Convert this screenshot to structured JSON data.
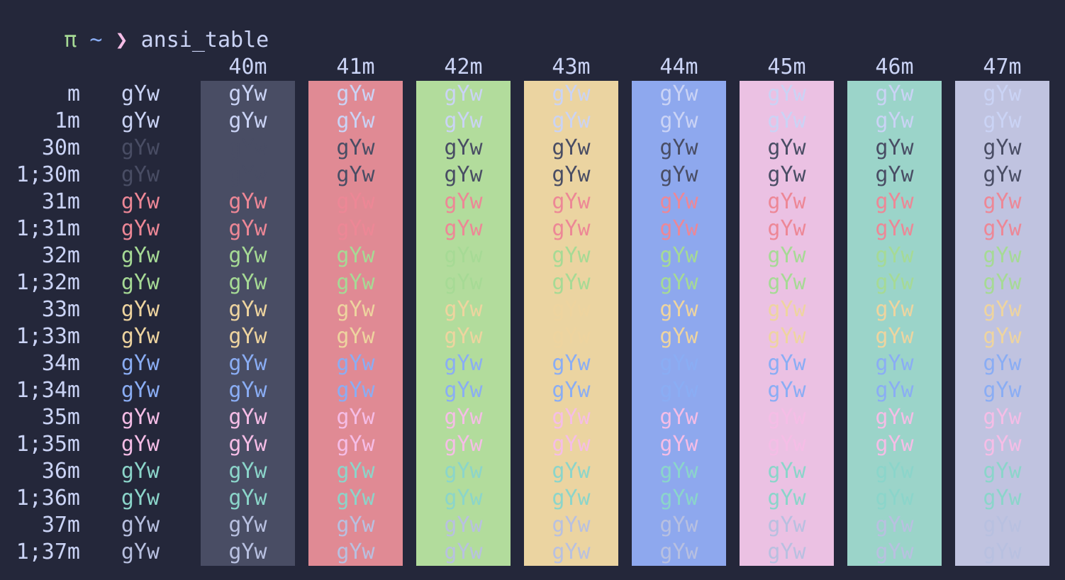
{
  "prompt": {
    "symbol": "π",
    "dir": "~",
    "arrow": "❯",
    "command": "ansi_table"
  },
  "colors": {
    "terminal_bg": "#24273a",
    "prompt_pi": "#a6da95",
    "prompt_dir": "#8aadf4",
    "prompt_arrow": "#f5bde6",
    "command_text": "#cad3f5",
    "fg_palette": {
      "30": "#494d64",
      "31": "#ed8796",
      "32": "#a6da95",
      "33": "#eed49f",
      "34": "#8aadf4",
      "35": "#f5bde6",
      "36": "#8bd5ca",
      "37": "#b8c0e0",
      "default": "#cad3f5"
    },
    "bg_palette": {
      "40m": "#494d64",
      "41m": "#e08a94",
      "42m": "#b2dc9c",
      "43m": "#ebd4a1",
      "44m": "#8ea8ee",
      "45m": "#ebc1e3",
      "46m": "#9bd4c9",
      "47m": "#c0c3e0"
    }
  },
  "table": {
    "sample": "gYw",
    "columns": [
      "40m",
      "41m",
      "42m",
      "43m",
      "44m",
      "45m",
      "46m",
      "47m"
    ],
    "rows": [
      {
        "label": "m",
        "fg": "default"
      },
      {
        "label": "1m",
        "fg": "default"
      },
      {
        "label": "30m",
        "fg": "30"
      },
      {
        "label": "1;30m",
        "fg": "30"
      },
      {
        "label": "31m",
        "fg": "31"
      },
      {
        "label": "1;31m",
        "fg": "31"
      },
      {
        "label": "32m",
        "fg": "32"
      },
      {
        "label": "1;32m",
        "fg": "32"
      },
      {
        "label": "33m",
        "fg": "33"
      },
      {
        "label": "1;33m",
        "fg": "33"
      },
      {
        "label": "34m",
        "fg": "34"
      },
      {
        "label": "1;34m",
        "fg": "34"
      },
      {
        "label": "35m",
        "fg": "35"
      },
      {
        "label": "1;35m",
        "fg": "35"
      },
      {
        "label": "36m",
        "fg": "36"
      },
      {
        "label": "1;36m",
        "fg": "36"
      },
      {
        "label": "37m",
        "fg": "37"
      },
      {
        "label": "1;37m",
        "fg": "37"
      }
    ]
  }
}
